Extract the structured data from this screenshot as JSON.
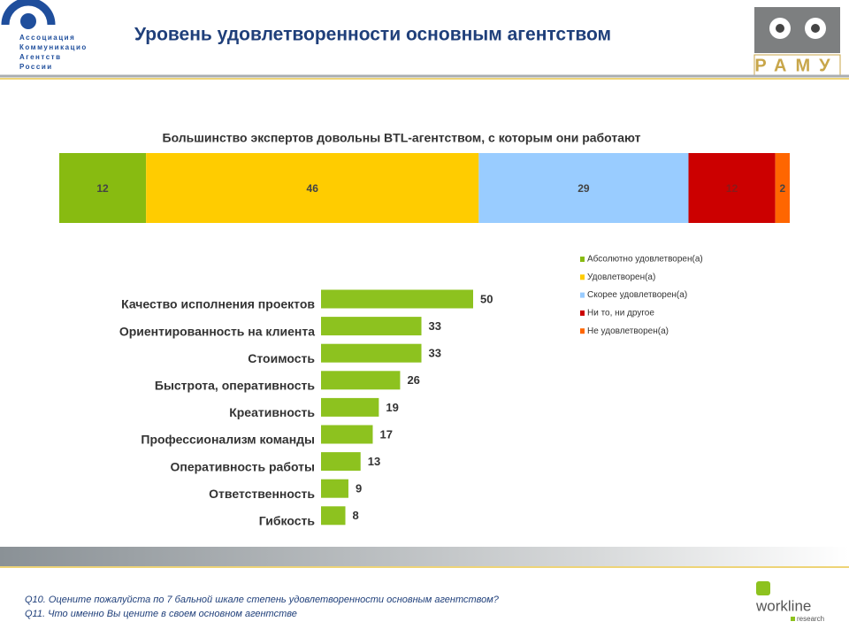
{
  "header": {
    "org": [
      "Ассоциация",
      "Коммуникацио",
      "Агентств",
      "России"
    ],
    "title": "Уровень удовлетворенности основным агентством",
    "logo": "РАМУ"
  },
  "chart_data": [
    {
      "type": "stacked-bar",
      "title": "Большинство экспертов довольны BTL-агентством, с которым они работают",
      "series": [
        {
          "name": "Абсолютно удовлетворен(а)",
          "color": "#88bb11",
          "values": [
            12
          ]
        },
        {
          "name": "Удовлетворен(а)",
          "color": "#ffcc00",
          "values": [
            46
          ]
        },
        {
          "name": "Скорее удовлетворен(а)",
          "color": "#99ccff",
          "values": [
            29
          ]
        },
        {
          "name": "Ни то, ни другое",
          "color": "#cc0000",
          "values": [
            12
          ]
        },
        {
          "name": "Не удовлетворен(а)",
          "color": "#ff6600",
          "values": [
            2
          ]
        }
      ]
    },
    {
      "type": "hbar",
      "color": "#8dc21f",
      "categories": [
        "Качество исполнения проектов",
        "Ориентированность на клиента",
        "Стоимость",
        "Быстрота, оперативность",
        "Креативность",
        "Профессионализм команды",
        "Оперативность  работы",
        "Ответственность",
        "Гибкость"
      ],
      "values": [
        50,
        33,
        33,
        26,
        19,
        17,
        13,
        9,
        8
      ]
    }
  ],
  "footer": {
    "notes": [
      "Q10. Оцените пожалуйста по 7 бальной шкале степень удовлетворенности основным агентством?",
      "Q11. Что именно Вы цените в своем основном агентстве"
    ],
    "brand": "workline",
    "brand_sub": "research"
  }
}
